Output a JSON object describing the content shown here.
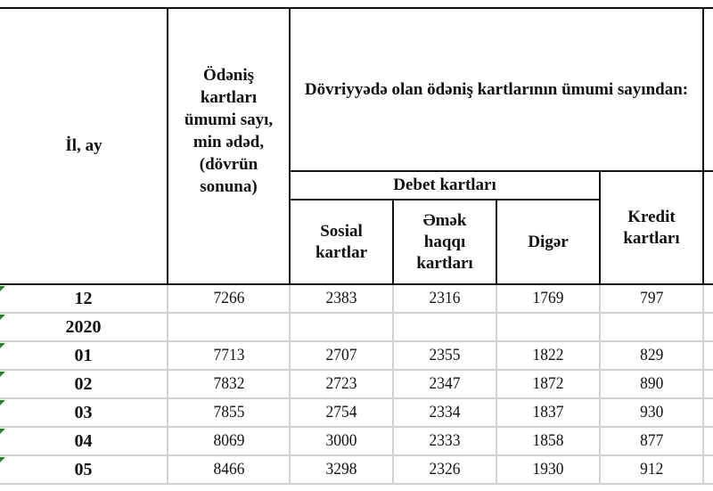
{
  "header": {
    "year_month": "İl, ay",
    "total_cards": "Ödəniş kartları ümumi sayı, min ədəd, (dövrün sonuna)",
    "of_total": "Dövriyyədə olan ödəniş kartlarının ümumi sayından:",
    "debit_cards": "Debet kartları",
    "social_cards": "Sosial kartlar",
    "salary_cards": "Əmək haqqı kartları",
    "other": "Digər",
    "credit_cards": "Kredit kartları"
  },
  "rows": [
    {
      "label": "12",
      "total": "7266",
      "social": "2383",
      "salary": "2316",
      "other": "1769",
      "credit": "797"
    },
    {
      "label": "2020",
      "total": "",
      "social": "",
      "salary": "",
      "other": "",
      "credit": ""
    },
    {
      "label": "01",
      "total": "7713",
      "social": "2707",
      "salary": "2355",
      "other": "1822",
      "credit": "829"
    },
    {
      "label": "02",
      "total": "7832",
      "social": "2723",
      "salary": "2347",
      "other": "1872",
      "credit": "890"
    },
    {
      "label": "03",
      "total": "7855",
      "social": "2754",
      "salary": "2334",
      "other": "1837",
      "credit": "930"
    },
    {
      "label": "04",
      "total": "8069",
      "social": "3000",
      "salary": "2333",
      "other": "1858",
      "credit": "877"
    },
    {
      "label": "05",
      "total": "8466",
      "social": "3298",
      "salary": "2326",
      "other": "1930",
      "credit": "912"
    }
  ]
}
